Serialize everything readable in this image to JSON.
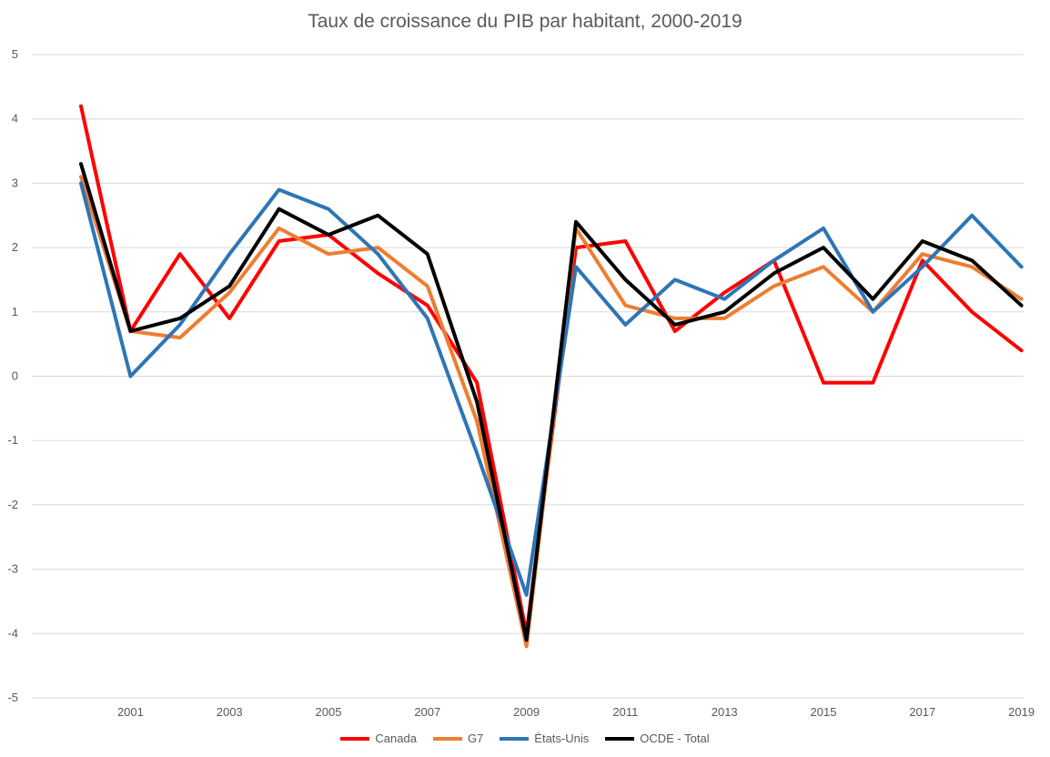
{
  "chart_data": {
    "type": "line",
    "title": "Taux de croissance du PIB par habitant, 2000-2019",
    "xlabel": "",
    "ylabel": "",
    "x": [
      2000,
      2001,
      2002,
      2003,
      2004,
      2005,
      2006,
      2007,
      2008,
      2009,
      2010,
      2011,
      2012,
      2013,
      2014,
      2015,
      2016,
      2017,
      2018,
      2019
    ],
    "x_tick_labels": [
      "2001",
      "2003",
      "2005",
      "2007",
      "2009",
      "2011",
      "2013",
      "2015",
      "2017",
      "2019"
    ],
    "y_tick_labels": [
      "5",
      "4",
      "3",
      "2",
      "1",
      "0",
      "-1",
      "-2",
      "-3",
      "-4",
      "-5"
    ],
    "ylim": [
      -5,
      5
    ],
    "grid": true,
    "legend_position": "bottom",
    "series": [
      {
        "name": "Canada",
        "color": "#ff0000",
        "values": [
          4.2,
          0.7,
          1.9,
          0.9,
          2.1,
          2.2,
          1.6,
          1.1,
          -0.1,
          -4.0,
          2.0,
          2.1,
          0.7,
          1.3,
          1.8,
          -0.1,
          -0.1,
          1.8,
          1.0,
          0.4
        ]
      },
      {
        "name": "G7",
        "color": "#ed7d31",
        "values": [
          3.1,
          0.7,
          0.6,
          1.3,
          2.3,
          1.9,
          2.0,
          1.4,
          -0.7,
          -4.2,
          2.3,
          1.1,
          0.9,
          0.9,
          1.4,
          1.7,
          1.0,
          1.9,
          1.7,
          1.2
        ]
      },
      {
        "name": "États-Unis",
        "color": "#2e75b6",
        "values": [
          3.0,
          0.0,
          0.8,
          1.9,
          2.9,
          2.6,
          1.9,
          0.9,
          -1.2,
          -3.4,
          1.7,
          0.8,
          1.5,
          1.2,
          1.8,
          2.3,
          1.0,
          1.7,
          2.5,
          1.7
        ]
      },
      {
        "name": "OCDE - Total",
        "color": "#000000",
        "values": [
          3.3,
          0.7,
          0.9,
          1.4,
          2.6,
          2.2,
          2.5,
          1.9,
          -0.4,
          -4.1,
          2.4,
          1.5,
          0.8,
          1.0,
          1.6,
          2.0,
          1.2,
          2.1,
          1.8,
          1.1
        ]
      }
    ]
  }
}
